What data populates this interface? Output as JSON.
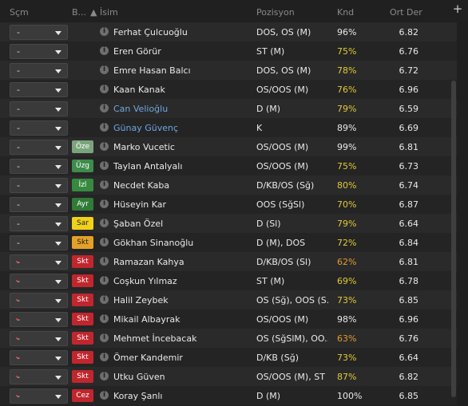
{
  "header": {
    "col_secim": "Sçm",
    "col_b": "B...",
    "col_isim": "İsim",
    "col_pozisyon": "Pozisyon",
    "col_knd": "Knd",
    "col_ort": "Ort Der",
    "plus": "+"
  },
  "colors": {
    "white": "#e9e9e9",
    "blue": "#6fa6e3",
    "yellow": "#e2c93a",
    "orange": "#e39a2d"
  },
  "rows": [
    {
      "sel": "-",
      "badge": "",
      "name": "Ferhat Çulcuoğlu",
      "pos": "DOS, OS (M)",
      "kon": "96%",
      "ort": "6.82",
      "kon_color": "#e9e9e9",
      "name_color": "#e9e9e9",
      "dot": false
    },
    {
      "sel": "-",
      "badge": "",
      "name": "Eren Görür",
      "pos": "ST (M)",
      "kon": "75%",
      "ort": "6.76",
      "kon_color": "#e2c93a",
      "name_color": "#e9e9e9",
      "dot": false
    },
    {
      "sel": "-",
      "badge": "",
      "name": "Emre Hasan Balcı",
      "pos": "DOS, OS (M)",
      "kon": "78%",
      "ort": "6.72",
      "kon_color": "#e2c93a",
      "name_color": "#e9e9e9",
      "dot": false
    },
    {
      "sel": "-",
      "badge": "",
      "name": "Kaan Kanak",
      "pos": "OS/OOS (M)",
      "kon": "76%",
      "ort": "6.96",
      "kon_color": "#e2c93a",
      "name_color": "#e9e9e9",
      "dot": false
    },
    {
      "sel": "-",
      "badge": "",
      "name": "Can Velioğlu",
      "pos": "D (M)",
      "kon": "79%",
      "ort": "6.59",
      "kon_color": "#e2c93a",
      "name_color": "#6fa6e3",
      "dot": false
    },
    {
      "sel": "-",
      "badge": "",
      "name": "Günay Güvenç",
      "pos": "K",
      "kon": "89%",
      "ort": "6.69",
      "kon_color": "#e9e9e9",
      "name_color": "#6fa6e3",
      "dot": false
    },
    {
      "sel": "-",
      "badge": "Öze",
      "badge_bg": "#7aa57b",
      "name": "Marko Vucetic",
      "pos": "OS/OOS (M)",
      "kon": "99%",
      "ort": "6.81",
      "kon_color": "#e9e9e9",
      "name_color": "#e9e9e9",
      "dot": false
    },
    {
      "sel": "-",
      "badge": "Üzg",
      "badge_bg": "#3e8b4a",
      "name": "Taylan Antalyalı",
      "pos": "OS/OOS (M)",
      "kon": "75%",
      "ort": "6.73",
      "kon_color": "#e2c93a",
      "name_color": "#e9e9e9",
      "dot": false
    },
    {
      "sel": "-",
      "badge": "İzl",
      "badge_bg": "#37893f",
      "name": "Necdet Kaba",
      "pos": "D/KB/OS (Sğ)",
      "kon": "80%",
      "ort": "6.74",
      "kon_color": "#e2c93a",
      "name_color": "#e9e9e9",
      "dot": false
    },
    {
      "sel": "-",
      "badge": "Ayr",
      "badge_bg": "#2f7b37",
      "name": "Hüseyin Kar",
      "pos": "OOS (SğSl)",
      "kon": "70%",
      "ort": "6.87",
      "kon_color": "#e2c93a",
      "name_color": "#e9e9e9",
      "dot": false
    },
    {
      "sel": "-",
      "badge": "Sar",
      "badge_bg": "#f0d21a",
      "badge_fg": "#222",
      "name": "Şaban Özel",
      "pos": "D (Sl)",
      "kon": "79%",
      "ort": "6.64",
      "kon_color": "#e2c93a",
      "name_color": "#e9e9e9",
      "dot": false
    },
    {
      "sel": "-",
      "badge": "Skt",
      "badge_bg": "#e3a227",
      "badge_fg": "#222",
      "name": "Gökhan Sinanoğlu",
      "pos": "D (M), DOS",
      "kon": "72%",
      "ort": "6.84",
      "kon_color": "#e2c93a",
      "name_color": "#e9e9e9",
      "dot": false
    },
    {
      "sel": "-",
      "badge": "Skt",
      "badge_bg": "#c0262d",
      "name": "Ramazan Kahya",
      "pos": "D/KB/OS (Sl)",
      "kon": "62%",
      "ort": "6.81",
      "kon_color": "#e39a2d",
      "name_color": "#e9e9e9",
      "dot": true
    },
    {
      "sel": "-",
      "badge": "Skt",
      "badge_bg": "#c0262d",
      "name": "Coşkun Yılmaz",
      "pos": "ST (M)",
      "kon": "69%",
      "ort": "6.78",
      "kon_color": "#e2c93a",
      "name_color": "#e9e9e9",
      "dot": true
    },
    {
      "sel": "-",
      "badge": "Skt",
      "badge_bg": "#c0262d",
      "name": "Halil Zeybek",
      "pos": "OS (Sğ), OOS (S...",
      "kon": "73%",
      "ort": "6.85",
      "kon_color": "#e2c93a",
      "name_color": "#e9e9e9",
      "dot": true
    },
    {
      "sel": "-",
      "badge": "Skt",
      "badge_bg": "#c0262d",
      "name": "Mikail Albayrak",
      "pos": "OS/OOS (M)",
      "kon": "98%",
      "ort": "6.96",
      "kon_color": "#e9e9e9",
      "name_color": "#e9e9e9",
      "dot": true
    },
    {
      "sel": "-",
      "badge": "Skt",
      "badge_bg": "#c0262d",
      "name": "Mehmet İncebacak",
      "pos": "OS (SğSlM), OO...",
      "kon": "63%",
      "ort": "6.76",
      "kon_color": "#e39a2d",
      "name_color": "#e9e9e9",
      "dot": true
    },
    {
      "sel": "-",
      "badge": "Skt",
      "badge_bg": "#c0262d",
      "name": "Ömer Kandemir",
      "pos": "D/KB (Sğ)",
      "kon": "73%",
      "ort": "6.64",
      "kon_color": "#e2c93a",
      "name_color": "#e9e9e9",
      "dot": true
    },
    {
      "sel": "-",
      "badge": "Skt",
      "badge_bg": "#c0262d",
      "name": "Utku Güven",
      "pos": "OS/OOS (M), ST ...",
      "kon": "87%",
      "ort": "6.82",
      "kon_color": "#e2c93a",
      "name_color": "#e9e9e9",
      "dot": true
    },
    {
      "sel": "-",
      "badge": "Cez",
      "badge_bg": "#c0262d",
      "name": "Koray Şanlı",
      "pos": "D (M)",
      "kon": "100%",
      "ort": "6.85",
      "kon_color": "#e9e9e9",
      "name_color": "#e9e9e9",
      "dot": true
    }
  ]
}
